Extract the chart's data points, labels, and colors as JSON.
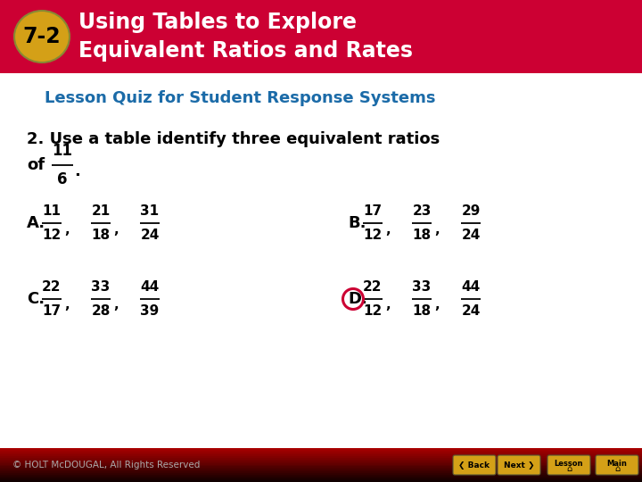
{
  "header_bg_color": "#CC0033",
  "header_text_color": "#FFFFFF",
  "badge_bg_color": "#D4A017",
  "badge_border_color": "#888833",
  "badge_text": "7-2",
  "header_line1": "Using Tables to Explore",
  "header_line2": "Equivalent Ratios and Rates",
  "subtitle": "Lesson Quiz for Student Response Systems",
  "subtitle_color": "#1B6BA8",
  "question_line1": "2. Use a table identify three equivalent ratios",
  "question_line2": "of",
  "question_text_color": "#000000",
  "frac_q_num": "11",
  "frac_q_den": "6",
  "opt_A": "A.",
  "opt_B": "B.",
  "opt_C": "C.",
  "opt_D": "D.",
  "A_fracs": [
    [
      "11",
      "12"
    ],
    [
      "21",
      "18"
    ],
    [
      "31",
      "24"
    ]
  ],
  "B_fracs": [
    [
      "17",
      "12"
    ],
    [
      "23",
      "18"
    ],
    [
      "29",
      "24"
    ]
  ],
  "C_fracs": [
    [
      "22",
      "17"
    ],
    [
      "33",
      "28"
    ],
    [
      "44",
      "39"
    ]
  ],
  "D_fracs": [
    [
      "22",
      "12"
    ],
    [
      "33",
      "18"
    ],
    [
      "44",
      "24"
    ]
  ],
  "D_circle_color": "#CC0033",
  "footer_bg_top": "#CC0000",
  "footer_bg_bot": "#220000",
  "footer_text": "© HOLT McDOUGAL, All Rights Reserved",
  "footer_text_color": "#AAAAAA",
  "button_color": "#D4A017",
  "button_border": "#555533",
  "btn_back": "❮ Back",
  "btn_next": "Next ❯",
  "btn_lesson": "Lesson",
  "btn_main": "Main",
  "fig_width": 7.2,
  "fig_height": 5.4,
  "dpi": 100
}
